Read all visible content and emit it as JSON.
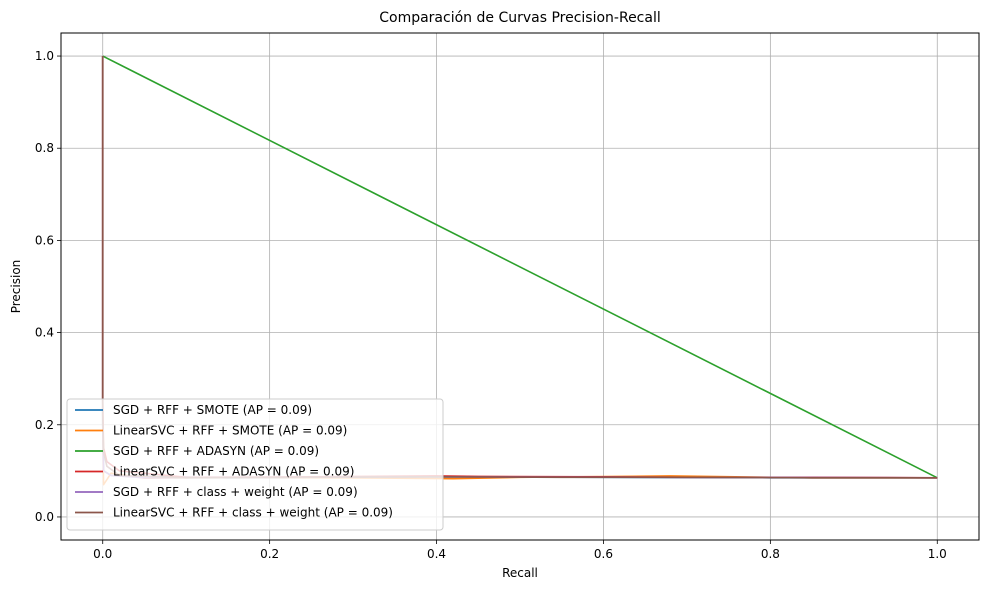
{
  "chart_data": {
    "type": "line",
    "title": "Comparación de Curvas Precision-Recall",
    "xlabel": "Recall",
    "ylabel": "Precision",
    "xlim": [
      -0.05,
      1.05
    ],
    "ylim": [
      -0.05,
      1.05
    ],
    "xticks": [
      0.0,
      0.2,
      0.4,
      0.6,
      0.8,
      1.0
    ],
    "yticks": [
      0.0,
      0.2,
      0.4,
      0.6,
      0.8,
      1.0
    ],
    "xtick_labels": [
      "0.0",
      "0.2",
      "0.4",
      "0.6",
      "0.8",
      "1.0"
    ],
    "ytick_labels": [
      "0.0",
      "0.2",
      "0.4",
      "0.6",
      "0.8",
      "1.0"
    ],
    "grid": true,
    "legend_position": "lower-left",
    "series": [
      {
        "name": "SGD + RFF + SMOTE (AP = 0.09)",
        "color": "#1f77b4",
        "x": [
          1.0,
          0.8,
          0.6,
          0.45,
          0.3,
          0.15,
          0.05,
          0.01,
          0.001,
          0.0,
          0.0
        ],
        "y": [
          0.085,
          0.085,
          0.086,
          0.087,
          0.086,
          0.085,
          0.088,
          0.09,
          0.1,
          0.2,
          1.0
        ]
      },
      {
        "name": "LinearSVC + RFF + SMOTE (AP = 0.09)",
        "color": "#ff7f0e",
        "x": [
          1.0,
          0.85,
          0.68,
          0.5,
          0.42,
          0.3,
          0.15,
          0.05,
          0.01,
          0.001,
          0.0,
          0.0
        ],
        "y": [
          0.085,
          0.085,
          0.089,
          0.086,
          0.083,
          0.085,
          0.086,
          0.084,
          0.095,
          0.07,
          0.2,
          1.0
        ]
      },
      {
        "name": "SGD + RFF + ADASYN (AP = 0.09)",
        "color": "#2ca02c",
        "x": [
          1.0,
          0.0,
          0.0
        ],
        "y": [
          0.085,
          1.0,
          1.0
        ]
      },
      {
        "name": "LinearSVC + RFF + ADASYN (AP = 0.09)",
        "color": "#d62728",
        "x": [
          1.0,
          0.85,
          0.7,
          0.6,
          0.45,
          0.4,
          0.25,
          0.1,
          0.02,
          0.005,
          0.001,
          0.0,
          0.0
        ],
        "y": [
          0.085,
          0.086,
          0.086,
          0.087,
          0.088,
          0.089,
          0.087,
          0.086,
          0.1,
          0.12,
          0.15,
          0.25,
          1.0
        ]
      },
      {
        "name": "SGD + RFF + class + weight (AP = 0.09)",
        "color": "#9467bd",
        "x": [
          1.0,
          0.7,
          0.4,
          0.2,
          0.05,
          0.01,
          0.001,
          0.0,
          0.0
        ],
        "y": [
          0.085,
          0.086,
          0.087,
          0.086,
          0.085,
          0.09,
          0.1,
          0.2,
          1.0
        ]
      },
      {
        "name": "LinearSVC + RFF + class + weight (AP = 0.09)",
        "color": "#8c564b",
        "x": [
          1.0,
          0.85,
          0.7,
          0.55,
          0.4,
          0.25,
          0.1,
          0.02,
          0.005,
          0.001,
          0.0,
          0.0
        ],
        "y": [
          0.085,
          0.085,
          0.086,
          0.086,
          0.087,
          0.086,
          0.085,
          0.09,
          0.11,
          0.14,
          0.22,
          1.0
        ]
      }
    ]
  }
}
